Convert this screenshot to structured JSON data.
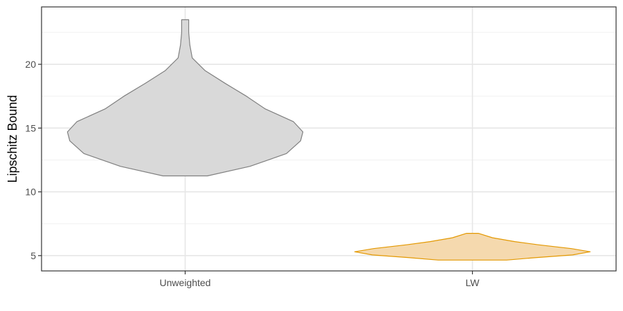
{
  "chart_data": {
    "type": "violin",
    "title": "",
    "xlabel": "",
    "ylabel": "Lipschitz Bound",
    "ylim": [
      3.8,
      24.5
    ],
    "yticks": [
      5,
      10,
      15,
      20
    ],
    "yminor": [
      7.5,
      12.5,
      17.5,
      22.5
    ],
    "grid": true,
    "legend": "none",
    "categories": [
      "Unweighted",
      "LW"
    ],
    "series": [
      {
        "category": "Unweighted",
        "fill": "#d9d9d9",
        "stroke": "#7f7f7f",
        "density": [
          {
            "y": 11.25,
            "w": 0.19
          },
          {
            "y": 12.0,
            "w": 0.55
          },
          {
            "y": 13.0,
            "w": 0.86
          },
          {
            "y": 14.0,
            "w": 0.98
          },
          {
            "y": 14.7,
            "w": 1.0
          },
          {
            "y": 15.5,
            "w": 0.92
          },
          {
            "y": 16.5,
            "w": 0.68
          },
          {
            "y": 17.5,
            "w": 0.52
          },
          {
            "y": 18.5,
            "w": 0.34
          },
          {
            "y": 19.5,
            "w": 0.17
          },
          {
            "y": 20.5,
            "w": 0.06
          },
          {
            "y": 21.5,
            "w": 0.04
          },
          {
            "y": 22.5,
            "w": 0.03
          },
          {
            "y": 23.5,
            "w": 0.03
          }
        ]
      },
      {
        "category": "LW",
        "fill": "#f5d9ae",
        "stroke": "#e39800",
        "density": [
          {
            "y": 4.65,
            "w": 0.29
          },
          {
            "y": 4.85,
            "w": 0.55
          },
          {
            "y": 5.05,
            "w": 0.85
          },
          {
            "y": 5.3,
            "w": 1.0
          },
          {
            "y": 5.55,
            "w": 0.84
          },
          {
            "y": 5.85,
            "w": 0.56
          },
          {
            "y": 6.1,
            "w": 0.36
          },
          {
            "y": 6.4,
            "w": 0.17
          },
          {
            "y": 6.75,
            "w": 0.05
          }
        ]
      }
    ]
  }
}
